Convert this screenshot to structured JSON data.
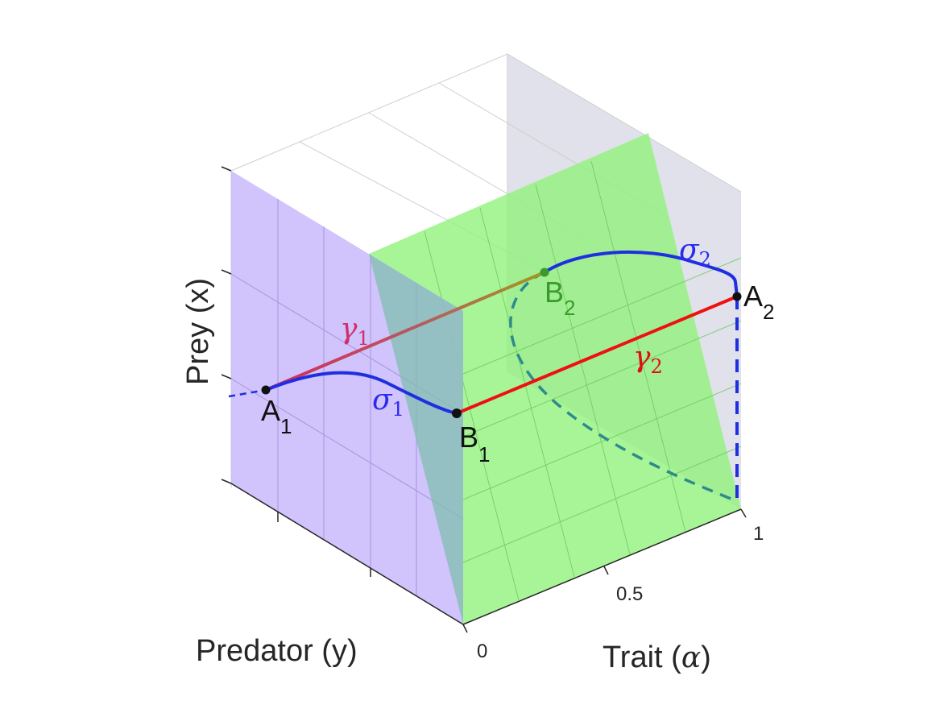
{
  "axes": {
    "x_label": "Predator (y)",
    "y_label": "Prey (x)",
    "z_label_text": "Trait (",
    "z_label_symbol": "α",
    "z_label_close": ")",
    "trait_ticks": [
      "0",
      "0.5",
      "1"
    ]
  },
  "points": {
    "A1": {
      "letter": "A",
      "sub": "1",
      "color": "#111111"
    },
    "B1": {
      "letter": "B",
      "sub": "1",
      "color": "#111111"
    },
    "A2": {
      "letter": "A",
      "sub": "2",
      "color": "#111111"
    },
    "B2": {
      "letter": "B",
      "sub": "2",
      "color": "#3a9a2a"
    }
  },
  "curves": {
    "gamma1": {
      "symbol": "γ",
      "sub": "1",
      "color": "#d0306a"
    },
    "gamma2": {
      "symbol": "γ",
      "sub": "2",
      "color": "#e01010"
    },
    "sigma1": {
      "symbol": "σ",
      "sub": "1",
      "color": "#2a2af0"
    },
    "sigma2": {
      "symbol": "σ",
      "sub": "2",
      "color": "#2a2af0"
    }
  },
  "colors": {
    "purple_plane": "#c9b8fb",
    "green_plane": "#8ff27a",
    "back_wall": "#dcdce8",
    "blue_curve": "#1f2fe0",
    "red_line": "#ee1111",
    "dashed_teal": "#2e8b8b"
  }
}
